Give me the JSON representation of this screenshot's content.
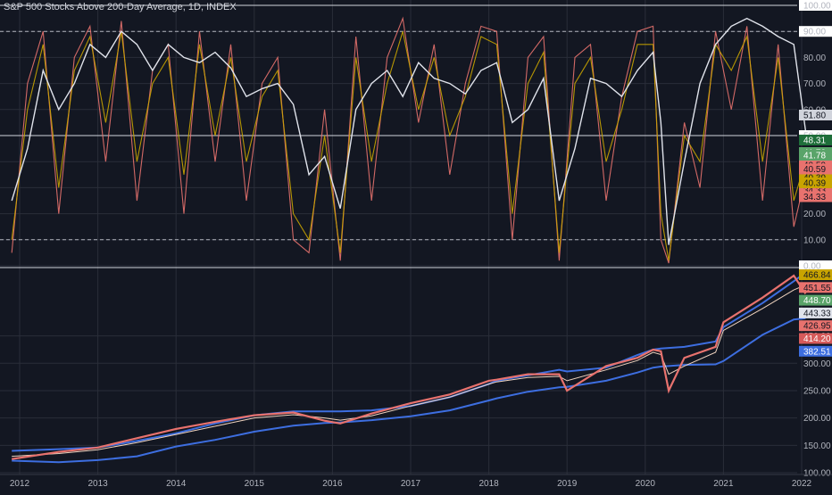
{
  "header": {
    "title": "S&P 500 Stocks Above 200-Day Average, 1D, INDEX"
  },
  "colors": {
    "background": "#131722",
    "breadth_200d": "#e0e3eb",
    "breadth_50d": "#c9a400",
    "breadth_20d": "#e8726e",
    "spx_price": "#e8726e",
    "ma_200_weekly": "#3d6ee0",
    "ma_envelope": "#3d6ee0",
    "ma_100d": "#f0d4c0"
  },
  "chart_data": [
    {
      "type": "line",
      "title": "S&P 500 Stocks Above 200-Day Average, 1D, INDEX",
      "ylim": [
        0,
        100
      ],
      "yticks": [
        0,
        10,
        20,
        30,
        40,
        50,
        60,
        70,
        80,
        90,
        100
      ],
      "ytick_labels": [
        "0.00",
        "10.00",
        "20.00",
        "30.00",
        "40.00",
        "50.00",
        "60.00",
        "70.00",
        "80.00",
        "90.00",
        "100.00"
      ],
      "highlighted_ticks": [
        "0.00",
        "50.00",
        "90.00",
        "100.00"
      ],
      "dashed_levels": [
        10,
        90
      ],
      "solid_levels": [
        50,
        100
      ],
      "x": [
        2011.9,
        2012.1,
        2012.3,
        2012.5,
        2012.7,
        2012.9,
        2013.1,
        2013.3,
        2013.5,
        2013.7,
        2013.9,
        2014.1,
        2014.3,
        2014.5,
        2014.7,
        2014.9,
        2015.1,
        2015.3,
        2015.5,
        2015.7,
        2015.9,
        2016.1,
        2016.3,
        2016.5,
        2016.7,
        2016.9,
        2017.1,
        2017.3,
        2017.5,
        2017.7,
        2017.9,
        2018.1,
        2018.3,
        2018.5,
        2018.7,
        2018.9,
        2019.1,
        2019.3,
        2019.5,
        2019.7,
        2019.9,
        2020.1,
        2020.2,
        2020.3,
        2020.5,
        2020.7,
        2020.9,
        2021.1,
        2021.3,
        2021.5,
        2021.7,
        2021.9,
        2022.05
      ],
      "series": [
        {
          "values": [
            25,
            45,
            75,
            60,
            70,
            85,
            80,
            90,
            85,
            75,
            85,
            80,
            78,
            82,
            76,
            65,
            68,
            70,
            62,
            35,
            42,
            22,
            60,
            70,
            75,
            65,
            78,
            72,
            70,
            66,
            75,
            78,
            55,
            60,
            72,
            25,
            45,
            72,
            70,
            65,
            75,
            82,
            55,
            8,
            40,
            70,
            85,
            92,
            95,
            92,
            88,
            85,
            51.8
          ]
        },
        {
          "values": [
            10,
            60,
            85,
            30,
            75,
            88,
            55,
            90,
            40,
            70,
            80,
            35,
            85,
            50,
            80,
            40,
            65,
            75,
            20,
            10,
            50,
            5,
            80,
            40,
            70,
            90,
            60,
            80,
            50,
            65,
            88,
            85,
            20,
            70,
            82,
            5,
            70,
            80,
            40,
            60,
            85,
            85,
            20,
            2,
            50,
            40,
            85,
            75,
            88,
            40,
            80,
            25,
            40.39
          ]
        },
        {
          "values": [
            5,
            70,
            90,
            20,
            80,
            92,
            40,
            94,
            25,
            75,
            85,
            20,
            90,
            40,
            85,
            25,
            70,
            80,
            10,
            5,
            60,
            2,
            88,
            25,
            80,
            95,
            55,
            85,
            35,
            70,
            92,
            90,
            10,
            80,
            88,
            2,
            80,
            85,
            25,
            65,
            90,
            92,
            10,
            1,
            55,
            30,
            90,
            60,
            92,
            25,
            85,
            15,
            34.33
          ]
        }
      ],
      "price_labels": [
        "51.80",
        "48.31",
        "41.78",
        "40.59",
        "40.39",
        "34.33"
      ]
    },
    {
      "type": "line",
      "ylim": [
        100,
        470
      ],
      "yticks": [
        100,
        150,
        200,
        250,
        300,
        350
      ],
      "ytick_labels": [
        "100.00",
        "150.00",
        "200.00",
        "250.00",
        "300.00",
        "350.00"
      ],
      "x": [
        2011.9,
        2012.5,
        2013.0,
        2013.5,
        2014.0,
        2014.5,
        2015.0,
        2015.5,
        2015.9,
        2016.1,
        2016.5,
        2017.0,
        2017.5,
        2018.0,
        2018.1,
        2018.5,
        2018.9,
        2019.0,
        2019.5,
        2019.9,
        2020.1,
        2020.2,
        2020.3,
        2020.5,
        2020.9,
        2021.0,
        2021.5,
        2021.9,
        2022.05
      ],
      "series": [
        {
          "values": [
            125,
            138,
            146,
            163,
            180,
            193,
            205,
            210,
            195,
            190,
            208,
            227,
            243,
            268,
            270,
            280,
            280,
            250,
            295,
            310,
            325,
            322,
            250,
            310,
            330,
            375,
            420,
            460,
            426.95
          ]
        },
        {
          "values": [
            140,
            143,
            146,
            158,
            172,
            190,
            205,
            212,
            212,
            212,
            214,
            222,
            238,
            262,
            268,
            278,
            288,
            285,
            292,
            315,
            325,
            327,
            328,
            330,
            340,
            366,
            410,
            450,
            466
          ]
        },
        {
          "values": [
            122,
            119,
            123,
            130,
            148,
            160,
            175,
            186,
            191,
            192,
            196,
            203,
            214,
            232,
            236,
            248,
            256,
            257,
            268,
            283,
            292,
            294,
            295,
            297,
            298,
            304,
            352,
            380,
            382.51
          ]
        },
        {
          "values": [
            130,
            135,
            142,
            155,
            170,
            185,
            200,
            206,
            200,
            196,
            204,
            222,
            238,
            262,
            266,
            274,
            276,
            268,
            288,
            305,
            320,
            316,
            280,
            295,
            320,
            360,
            400,
            434,
            443.33
          ]
        }
      ],
      "price_labels": [
        "466.84",
        "451.55",
        "448.70",
        "443.33",
        "426.95",
        "414.20",
        "382.51"
      ]
    }
  ],
  "x_axis": {
    "labels": [
      "2012",
      "2013",
      "2014",
      "2015",
      "2016",
      "2017",
      "2018",
      "2019",
      "2020",
      "2021",
      "2022"
    ]
  },
  "badges": {
    "top": [
      {
        "text": "51.80",
        "bg": "#d1d4dc",
        "fg": "#131722"
      },
      {
        "text": "48.31",
        "bg": "#1f6e3a",
        "fg": "#ffffff"
      },
      {
        "text": "41.78",
        "bg": "#5aa469",
        "fg": "#ffffff"
      },
      {
        "text": "40.59",
        "bg": "#e8726e",
        "fg": "#131722"
      },
      {
        "text": "40.39",
        "bg": "#c9a400",
        "fg": "#131722"
      },
      {
        "text": "34.33",
        "bg": "#e8726e",
        "fg": "#131722"
      }
    ],
    "bottom": [
      {
        "text": "466.84",
        "bg": "#c9a400",
        "fg": "#131722"
      },
      {
        "text": "451.55",
        "bg": "#e8726e",
        "fg": "#131722"
      },
      {
        "text": "448.70",
        "bg": "#5aa469",
        "fg": "#ffffff"
      },
      {
        "text": "443.33",
        "bg": "#e0e3eb",
        "fg": "#131722"
      },
      {
        "text": "426.95",
        "bg": "#e8726e",
        "fg": "#131722"
      },
      {
        "text": "414.20",
        "bg": "#d65a5a",
        "fg": "#ffffff"
      },
      {
        "text": "382.51",
        "bg": "#3d6ee0",
        "fg": "#ffffff"
      }
    ]
  }
}
